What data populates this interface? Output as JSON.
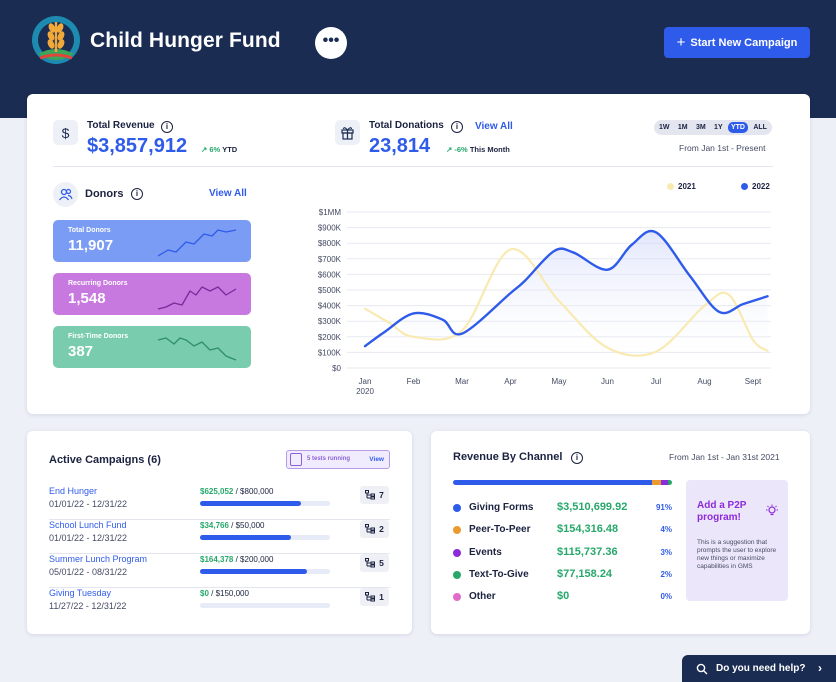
{
  "header": {
    "app_title": "Child Hunger Fund",
    "more_label": "•••",
    "new_campaign_label": "Start New Campaign",
    "new_campaign_icon": "plus-icon",
    "logo_icon": "wheat-logo-icon"
  },
  "revenue": {
    "label": "Total Revenue",
    "value": "$3,857,912",
    "delta": "6%",
    "delta_suffix": "YTD",
    "icon": "dollar-icon"
  },
  "donations": {
    "label": "Total Donations",
    "value": "23,814",
    "delta": "-6%",
    "delta_suffix": "This Month",
    "view_all": "View All",
    "icon": "gift-icon"
  },
  "period": {
    "options": [
      "1W",
      "1M",
      "3M",
      "1Y",
      "YTD",
      "ALL"
    ],
    "selected": "YTD",
    "range_text": "From Jan 1st - Present"
  },
  "donors": {
    "title": "Donors",
    "view_all": "View All",
    "icon": "people-icon",
    "tiles": [
      {
        "label": "Total Donors",
        "value": "11,907",
        "color": "#7b9cf5",
        "line": "#2f5bea"
      },
      {
        "label": "Recurring Donors",
        "value": "1,548",
        "color": "#c879e0",
        "line": "#7a2a9a"
      },
      {
        "label": "First-Time Donors",
        "value": "387",
        "color": "#79cdae",
        "line": "#2e8d6a"
      }
    ]
  },
  "chart_data": {
    "type": "line",
    "categories": [
      "Jan\n2020",
      "Feb",
      "Mar",
      "Apr",
      "May",
      "Jun",
      "Jul",
      "Aug",
      "Sept"
    ],
    "y_ticks": [
      "$0",
      "$100K",
      "$200K",
      "$300K",
      "$400K",
      "$500K",
      "$600K",
      "$700K",
      "$800K",
      "$900K",
      "$1MM"
    ],
    "ylim": [
      0,
      1000000
    ],
    "grid": true,
    "legend": "top-right",
    "series": [
      {
        "name": "2021",
        "color": "#f8eab2",
        "x": [
          0,
          0.5,
          1,
          2,
          3,
          4,
          5,
          6,
          7,
          7.5,
          8,
          8.3
        ],
        "values": [
          380000,
          290000,
          200000,
          240000,
          760000,
          430000,
          130000,
          105000,
          400000,
          470000,
          180000,
          110000
        ]
      },
      {
        "name": "2022",
        "color": "#2f5bea",
        "x": [
          0,
          0.4,
          1,
          1.6,
          2,
          3,
          3.3,
          3.9,
          4.3,
          5,
          5.5,
          6,
          6.7,
          7.3,
          7.8,
          8.3
        ],
        "values": [
          140000,
          230000,
          350000,
          310000,
          220000,
          480000,
          560000,
          750000,
          740000,
          630000,
          790000,
          870000,
          590000,
          360000,
          410000,
          460000
        ]
      }
    ]
  },
  "campaigns": {
    "title": "Active Campaigns (6)",
    "tests_badge": "5 tests running",
    "tests_view": "View",
    "rows": [
      {
        "name": "End Hunger",
        "dates": "01/01/22 - 12/31/22",
        "raised": "$625,052",
        "goal": " / $800,000",
        "progress": 0.78,
        "tests": "7"
      },
      {
        "name": "School Lunch Fund",
        "dates": "01/01/22 - 12/31/22",
        "raised": "$34,766",
        "goal": " / $50,000",
        "progress": 0.7,
        "tests": "2"
      },
      {
        "name": "Summer Lunch Program",
        "dates": "05/01/22 - 08/31/22",
        "raised": "$164,378",
        "goal": " / $200,000",
        "progress": 0.82,
        "tests": "5"
      },
      {
        "name": "Giving Tuesday",
        "dates": "11/27/22 - 12/31/22",
        "raised": "$0",
        "goal": " / $150,000",
        "progress": 0.0,
        "tests": "1"
      }
    ]
  },
  "channels": {
    "title": "Revenue By Channel",
    "range_text": "From Jan 1st - Jan 31st 2021",
    "rows": [
      {
        "name": "Giving Forms",
        "amount": "$3,510,699.92",
        "pct": "91%",
        "share": 0.91,
        "color": "#2f5bea"
      },
      {
        "name": "Peer-To-Peer",
        "amount": "$154,316.48",
        "pct": "4%",
        "share": 0.04,
        "color": "#ea9a2f"
      },
      {
        "name": "Events",
        "amount": "$115,737.36",
        "pct": "3%",
        "share": 0.03,
        "color": "#8c2bd9"
      },
      {
        "name": "Text-To-Give",
        "amount": "$77,158.24",
        "pct": "2%",
        "share": 0.02,
        "color": "#27a86b"
      },
      {
        "name": "Other",
        "amount": "$0",
        "pct": "0%",
        "share": 0.0,
        "color": "#e06bc9"
      }
    ],
    "suggestion_title": "Add a P2P program!",
    "suggestion_text": "This is a suggestion that prompts the user to explore new things or maximize capabilities in GMS",
    "suggestion_icon": "lightbulb-icon"
  },
  "help": {
    "label": "Do you need help?",
    "icon": "search-icon"
  }
}
